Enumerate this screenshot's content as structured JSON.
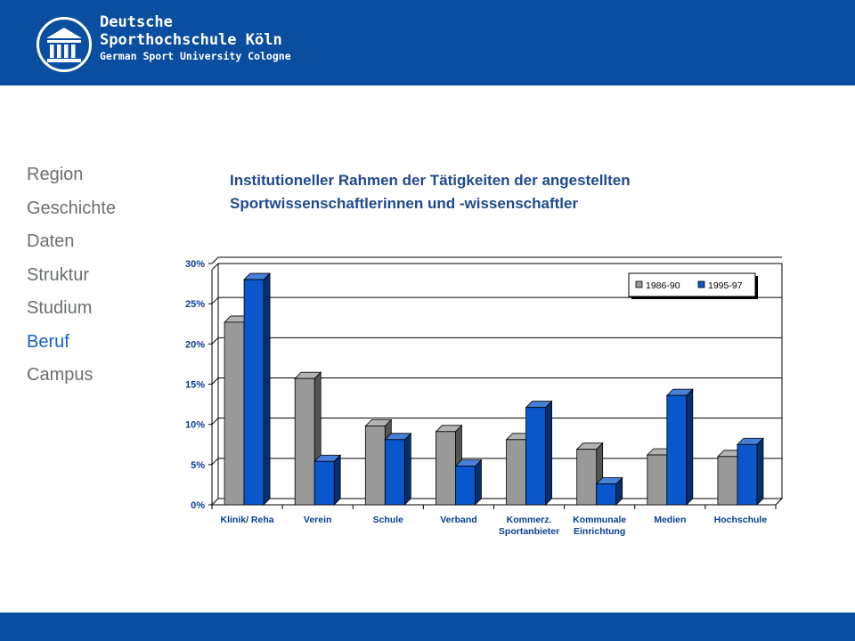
{
  "header": {
    "brand_line1": "Deutsche",
    "brand_line2": "Sporthochschule Köln",
    "brand_line3": "German Sport University Cologne"
  },
  "nav": {
    "items": [
      {
        "label": "Region",
        "active": false
      },
      {
        "label": "Geschichte",
        "active": false
      },
      {
        "label": "Daten",
        "active": false
      },
      {
        "label": "Struktur",
        "active": false
      },
      {
        "label": "Studium",
        "active": false
      },
      {
        "label": "Beruf",
        "active": true
      },
      {
        "label": "Campus",
        "active": false
      }
    ]
  },
  "chart_title": {
    "line1": "Institutioneller Rahmen der Tätigkeiten der angestellten",
    "line2": "Sportwissenschaftlerinnen und -wissenschaftler"
  },
  "chart_data": {
    "type": "bar",
    "categories": [
      [
        "Klinik/ Reha"
      ],
      [
        "Verein"
      ],
      [
        "Schule"
      ],
      [
        "Verband"
      ],
      [
        "Kommerz.",
        "Sportanbieter"
      ],
      [
        "Kommunale",
        "Einrichtung"
      ],
      [
        "Medien"
      ],
      [
        "Hochschule"
      ]
    ],
    "series": [
      {
        "name": "1986-90",
        "color": "#999999",
        "values": [
          22.7,
          15.7,
          9.8,
          9.1,
          8.1,
          6.9,
          6.2,
          6.0
        ]
      },
      {
        "name": "1995-97",
        "color": "#0a56cc",
        "values": [
          28.0,
          5.4,
          8.1,
          4.8,
          12.1,
          2.6,
          13.6,
          7.5
        ]
      }
    ],
    "yticks": [
      "0%",
      "5%",
      "10%",
      "15%",
      "20%",
      "25%",
      "30%"
    ],
    "ylim": [
      0,
      30
    ],
    "grid": true,
    "legend_position": "top-right",
    "style": "3d-clustered-bar"
  },
  "colors": {
    "brand_blue": "#0a4ea0",
    "nav_gray": "#6b6f74",
    "nav_active": "#1660c8",
    "title_blue": "#1e4a8c",
    "axis_label_blue": "#0a3d91"
  }
}
